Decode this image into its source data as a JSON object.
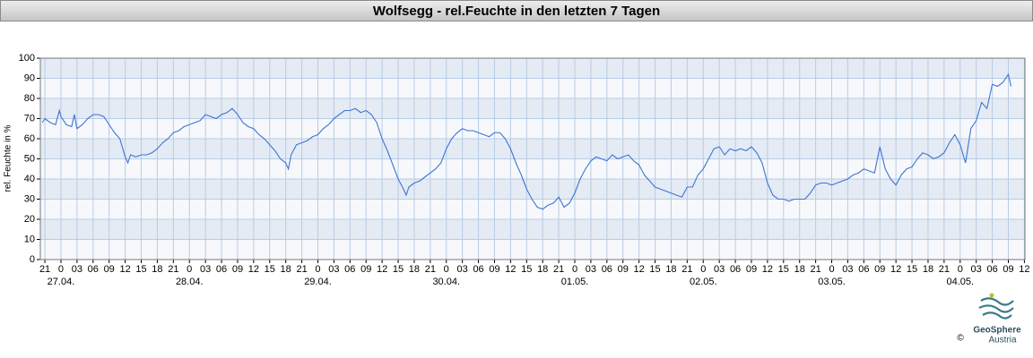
{
  "chart_data": {
    "type": "line",
    "title": "Wolfsegg - rel.Feuchte in den letzten 7 Tagen",
    "ylabel": "rel. Feuchte in %",
    "logo": {
      "name": "GeoSphere",
      "sub": "Austria",
      "copyright": "©"
    },
    "xlim": [
      -3.85,
      180.1
    ],
    "ylim": [
      0,
      100
    ],
    "yticks": [
      0,
      10,
      20,
      30,
      40,
      50,
      60,
      70,
      80,
      90,
      100
    ],
    "xticks": [
      {
        "value": -3,
        "label": "21"
      },
      0,
      {
        "value": 3,
        "label": "03"
      },
      {
        "value": 6,
        "label": "06"
      },
      {
        "value": 9,
        "label": "09"
      },
      12,
      15,
      18,
      21,
      {
        "value": 24,
        "label": "0"
      },
      {
        "value": 27,
        "label": "03"
      },
      {
        "value": 30,
        "label": "06"
      },
      {
        "value": 33,
        "label": "09"
      },
      {
        "value": 36,
        "label": "12"
      },
      {
        "value": 39,
        "label": "15"
      },
      {
        "value": 42,
        "label": "18"
      },
      {
        "value": 45,
        "label": "21"
      },
      {
        "value": 48,
        "label": "0"
      },
      {
        "value": 51,
        "label": "03"
      },
      {
        "value": 54,
        "label": "06"
      },
      {
        "value": 57,
        "label": "09"
      },
      {
        "value": 60,
        "label": "12"
      },
      {
        "value": 63,
        "label": "15"
      },
      {
        "value": 66,
        "label": "18"
      },
      {
        "value": 69,
        "label": "21"
      },
      {
        "value": 72,
        "label": "0"
      },
      {
        "value": 75,
        "label": "03"
      },
      {
        "value": 78,
        "label": "06"
      },
      {
        "value": 81,
        "label": "09"
      },
      {
        "value": 84,
        "label": "12"
      },
      {
        "value": 87,
        "label": "15"
      },
      {
        "value": 90,
        "label": "18"
      },
      {
        "value": 93,
        "label": "21"
      },
      {
        "value": 96,
        "label": "0"
      },
      {
        "value": 99,
        "label": "03"
      },
      {
        "value": 102,
        "label": "06"
      },
      {
        "value": 105,
        "label": "09"
      },
      {
        "value": 108,
        "label": "12"
      },
      {
        "value": 111,
        "label": "15"
      },
      {
        "value": 114,
        "label": "18"
      },
      {
        "value": 117,
        "label": "21"
      },
      {
        "value": 120,
        "label": "0"
      },
      {
        "value": 123,
        "label": "03"
      },
      {
        "value": 126,
        "label": "06"
      },
      {
        "value": 129,
        "label": "09"
      },
      {
        "value": 132,
        "label": "12"
      },
      {
        "value": 135,
        "label": "15"
      },
      {
        "value": 138,
        "label": "18"
      },
      {
        "value": 141,
        "label": "21"
      },
      {
        "value": 144,
        "label": "0"
      },
      {
        "value": 147,
        "label": "03"
      },
      {
        "value": 150,
        "label": "06"
      },
      {
        "value": 153,
        "label": "09"
      },
      {
        "value": 156,
        "label": "12"
      },
      {
        "value": 159,
        "label": "15"
      },
      {
        "value": 162,
        "label": "18"
      },
      {
        "value": 165,
        "label": "21"
      },
      {
        "value": 168,
        "label": "0"
      },
      {
        "value": 171,
        "label": "03"
      },
      {
        "value": 174,
        "label": "06"
      },
      {
        "value": 177,
        "label": "09"
      },
      {
        "value": 180,
        "label": "12"
      }
    ],
    "date_labels": [
      {
        "value": 0,
        "label": "27.04."
      },
      {
        "value": 24,
        "label": "28.04."
      },
      {
        "value": 48,
        "label": "29.04."
      },
      {
        "value": 72,
        "label": "30.04."
      },
      {
        "value": 96,
        "label": "01.05."
      },
      {
        "value": 120,
        "label": "02.05."
      },
      {
        "value": 144,
        "label": "03.05."
      },
      {
        "value": 168,
        "label": "04.05."
      }
    ],
    "grid": true,
    "x": [
      -3.5,
      -3,
      -2,
      -1,
      -0.3,
      0,
      1,
      2,
      2.5,
      3,
      4,
      5,
      6,
      7,
      8,
      9,
      10,
      11,
      12,
      12.5,
      13,
      14,
      15,
      16,
      17,
      18,
      19,
      20,
      21,
      22,
      23,
      24,
      25,
      26,
      27,
      28,
      29,
      30,
      31,
      32,
      33,
      34,
      35,
      36,
      37,
      38,
      39,
      40,
      41,
      42,
      42.5,
      43,
      44,
      45,
      46,
      47,
      48,
      49,
      50,
      51,
      52,
      53,
      54,
      55,
      56,
      57,
      58,
      59,
      60,
      61,
      62,
      63,
      64,
      64.5,
      65,
      66,
      67,
      68,
      69,
      70,
      71,
      72,
      73,
      74,
      75,
      76,
      77,
      78,
      79,
      80,
      81,
      82,
      83,
      84,
      85,
      86,
      87,
      88,
      89,
      90,
      91,
      92,
      93,
      94,
      95,
      96,
      97,
      98,
      99,
      100,
      101,
      102,
      103,
      104,
      105,
      106,
      107,
      108,
      109,
      110,
      111,
      112,
      113,
      114,
      115,
      116,
      117,
      118,
      119,
      120,
      121,
      122,
      123,
      124,
      125,
      126,
      127,
      128,
      129,
      130,
      131,
      132,
      133,
      134,
      135,
      136,
      137,
      138,
      139,
      140,
      141,
      142,
      143,
      144,
      145,
      146,
      147,
      148,
      149,
      150,
      151,
      152,
      153,
      154,
      155,
      156,
      157,
      158,
      159,
      160,
      161,
      162,
      163,
      164,
      165,
      166,
      167,
      168,
      169,
      170,
      171,
      172,
      173,
      174,
      175,
      176,
      177,
      177.5
    ],
    "series": [
      {
        "name": "rel. Feuchte",
        "color": "#3f74d6",
        "values": [
          68,
          70,
          68,
          67,
          74,
          71,
          67,
          66,
          72,
          65,
          67,
          70,
          72,
          72,
          71,
          67,
          63,
          60,
          51,
          48,
          52,
          51,
          52,
          52,
          53,
          55,
          58,
          60,
          63,
          64,
          66,
          67,
          68,
          69,
          72,
          71,
          70,
          72,
          73,
          75,
          72,
          68,
          66,
          65,
          62,
          60,
          57,
          54,
          50,
          48,
          45,
          52,
          57,
          58,
          59,
          61,
          62,
          65,
          67,
          70,
          72,
          74,
          74,
          75,
          73,
          74,
          72,
          68,
          60,
          54,
          47,
          40,
          35,
          32,
          36,
          38,
          39,
          41,
          43,
          45,
          48,
          55,
          60,
          63,
          65,
          64,
          64,
          63,
          62,
          61,
          63,
          63,
          60,
          55,
          48,
          42,
          35,
          30,
          26,
          25,
          27,
          28,
          31,
          26,
          28,
          33,
          40,
          45,
          49,
          51,
          50,
          49,
          52,
          50,
          51,
          52,
          49,
          47,
          42,
          39,
          36,
          35,
          34,
          33,
          32,
          31,
          36,
          36,
          42,
          45,
          50,
          55,
          56,
          52,
          55,
          54,
          55,
          54,
          56,
          53,
          48,
          38,
          32,
          30,
          30,
          29,
          30,
          30,
          30,
          33,
          37,
          38,
          38,
          37,
          38,
          39,
          40,
          42,
          43,
          45,
          44,
          43,
          56,
          45,
          40,
          37,
          42,
          45,
          46,
          50,
          53,
          52,
          50,
          51,
          53,
          58,
          62,
          57,
          48,
          65,
          69,
          78,
          75,
          87,
          86,
          88,
          92,
          86
        ]
      }
    ]
  }
}
